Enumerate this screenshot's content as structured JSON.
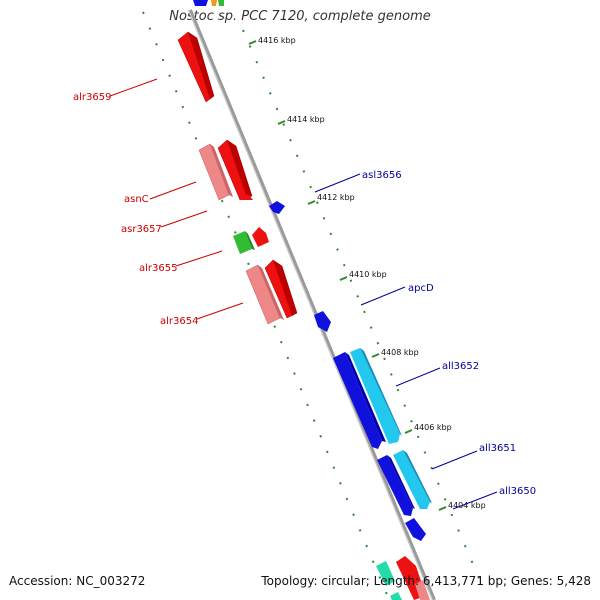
{
  "title": "Nostoc sp. PCC 7120, complete genome",
  "footer": {
    "accession": "Accession: NC_003272",
    "summary": "Topology: circular; Length: 6,413,771 bp; Genes: 5,428"
  },
  "colors": {
    "backbone": "#888888",
    "tick": "#2f8a2f",
    "left_label": "#cc0000",
    "right_label": "#000099",
    "red": "#ee1111",
    "pink": "#ee8888",
    "green": "#33bb33",
    "blue": "#1111dd",
    "cyan": "#22c8ee"
  },
  "ticks": [
    "4416 kbp",
    "4414 kbp",
    "4412 kbp",
    "4410 kbp",
    "4408 kbp",
    "4406 kbp",
    "4404 kbp"
  ],
  "labels_left": [
    "alr3659",
    "asnC",
    "asr3657",
    "alr3655",
    "alr3654"
  ],
  "labels_right": [
    "asl3656",
    "apcD",
    "all3652",
    "all3651",
    "all3650"
  ]
}
